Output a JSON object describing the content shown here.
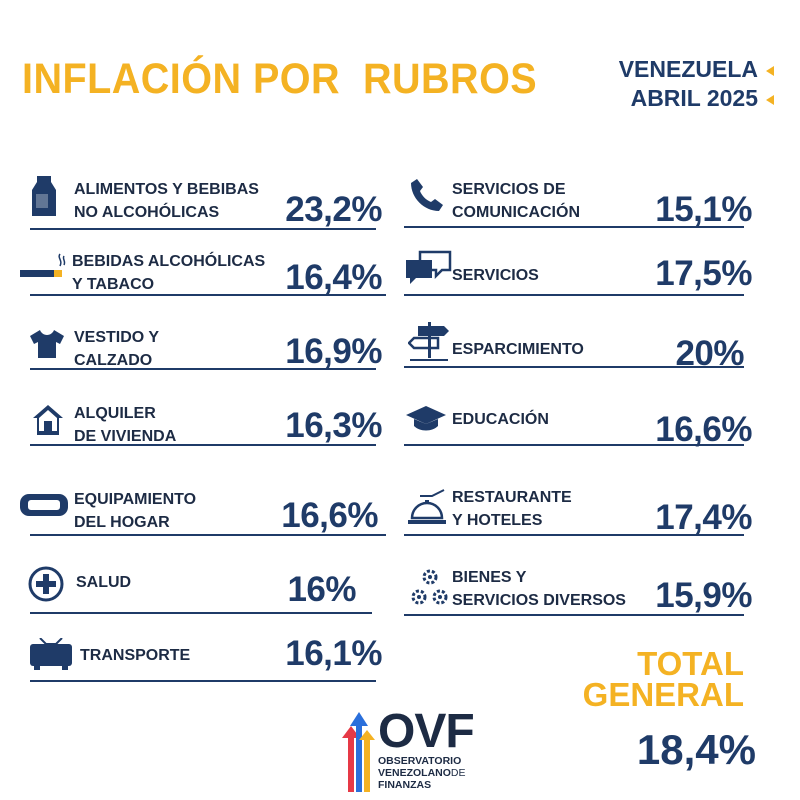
{
  "header": {
    "title": "INFLACIÓN POR  RUBROS",
    "country": "VENEZUELA",
    "period": "ABRIL 2025"
  },
  "left_items": [
    {
      "label1": "ALIMENTOS Y BEBIBAS",
      "label2": "NO ALCOHÓLICAS",
      "value": "23,2%",
      "icon": "milk-carton-icon"
    },
    {
      "label1": "BEBIDAS ALCOHÓLICAS",
      "label2": "Y TABACO",
      "value": "16,4%",
      "icon": "cigarette-icon"
    },
    {
      "label1": "VESTIDO Y",
      "label2": "CALZADO",
      "value": "16,9%",
      "icon": "tshirt-icon"
    },
    {
      "label1": "ALQUILER",
      "label2": "DE VIVIENDA",
      "value": "16,3%",
      "icon": "house-icon"
    },
    {
      "label1": "EQUIPAMIENTO",
      "label2": "DEL HOGAR",
      "value": "16,6%",
      "icon": "sofa-icon"
    },
    {
      "label1": "SALUD",
      "label2": "",
      "value": "16%",
      "icon": "health-cross-icon"
    },
    {
      "label1": "TRANSPORTE",
      "label2": "",
      "value": "16,1%",
      "icon": "train-icon"
    }
  ],
  "right_items": [
    {
      "label1": "SERVICIOS DE",
      "label2": "COMUNICACIÓN",
      "value": "15,1%",
      "icon": "phone-icon"
    },
    {
      "label1": "SERVICIOS",
      "label2": "",
      "value": "17,5%",
      "icon": "chat-bubbles-icon"
    },
    {
      "label1": "ESPARCIMIENTO",
      "label2": "",
      "value": "20%",
      "icon": "signpost-icon"
    },
    {
      "label1": "EDUCACIÓN",
      "label2": "",
      "value": "16,6%",
      "icon": "graduation-cap-icon"
    },
    {
      "label1": "RESTAURANTE",
      "label2": "Y HOTELES",
      "value": "17,4%",
      "icon": "service-bell-icon"
    },
    {
      "label1": "BIENES Y",
      "label2": "SERVICIOS DIVERSOS",
      "value": "15,9%",
      "icon": "gears-icon"
    }
  ],
  "total": {
    "line1": "TOTAL",
    "line2": "GENERAL",
    "value": "18,4%"
  },
  "logo": {
    "name": "OVF",
    "line1": "OBSERVATORIO",
    "line2": "VENEZOLANO",
    "line2_suffix": "DE",
    "line3": "FINANZAS"
  },
  "colors": {
    "accent_yellow": "#f4b223",
    "navy": "#1f3b68",
    "arrow_red": "#e63946",
    "arrow_blue": "#2a6fdb"
  }
}
